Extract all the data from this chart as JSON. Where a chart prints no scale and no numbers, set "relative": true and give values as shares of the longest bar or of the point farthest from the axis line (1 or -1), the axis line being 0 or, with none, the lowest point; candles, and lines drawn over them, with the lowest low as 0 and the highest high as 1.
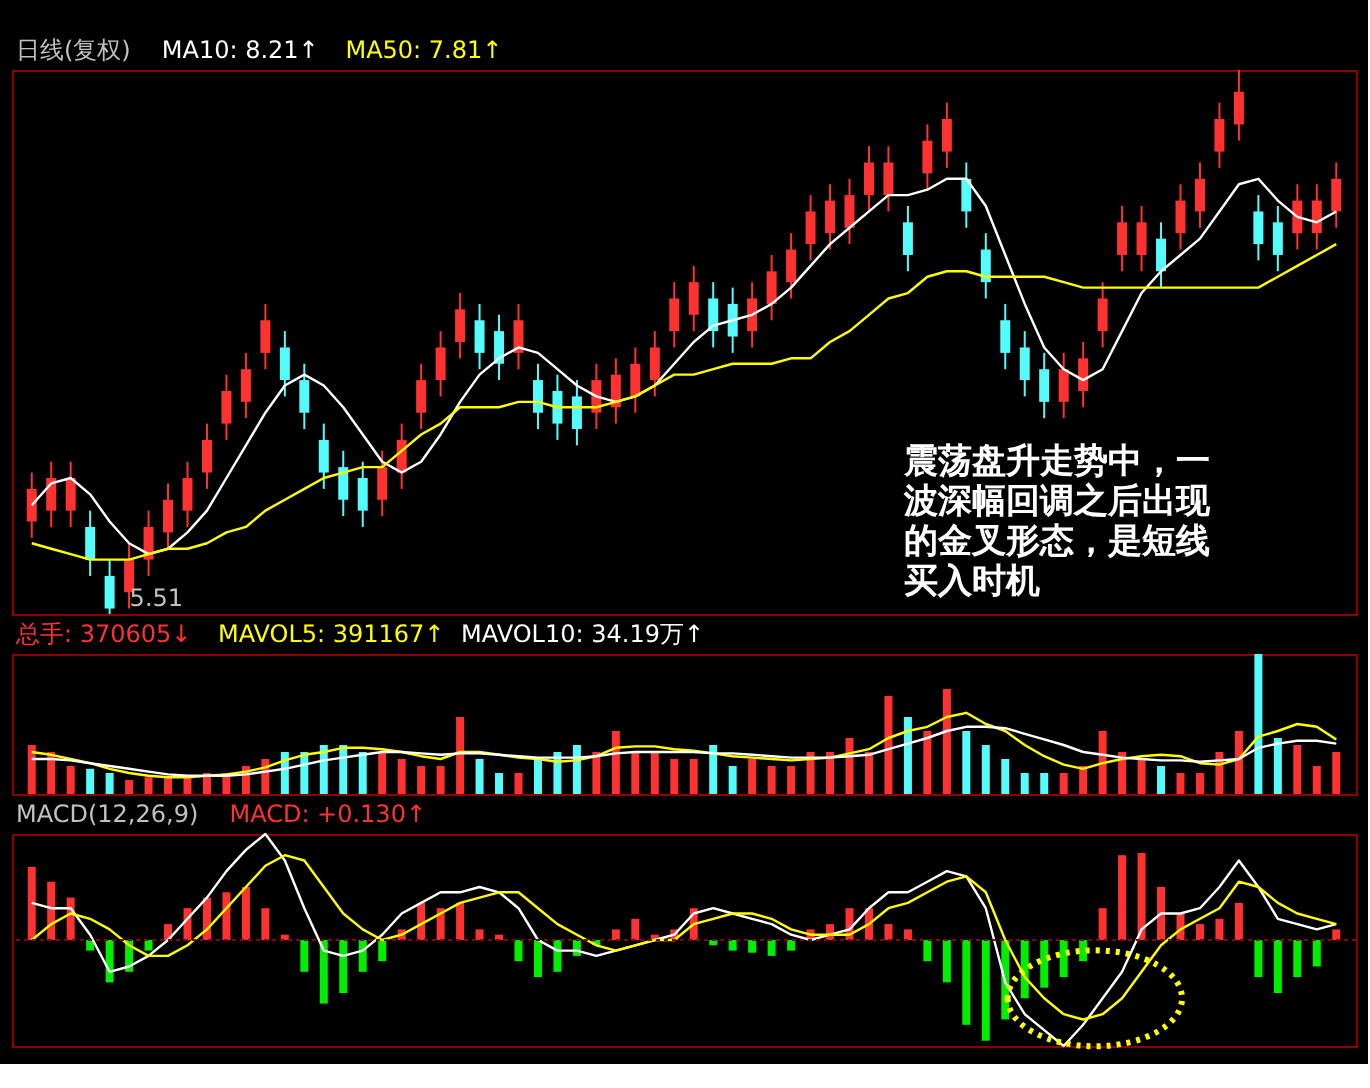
{
  "chart_data": [
    {
      "type": "candlestick",
      "relative": true,
      "tick_labels": false,
      "categories": [
        null,
        null,
        null,
        null,
        null,
        null,
        null,
        null,
        null,
        null,
        null,
        null,
        null,
        null,
        null,
        null,
        null,
        null,
        null,
        null,
        null,
        null,
        null,
        null,
        null,
        null,
        null,
        null,
        null,
        null,
        null,
        null,
        null,
        null,
        null,
        null,
        null,
        null,
        null,
        null,
        null,
        null,
        null,
        null,
        null,
        null,
        null,
        null,
        null,
        null,
        null,
        null,
        null,
        null,
        null,
        null,
        null,
        null,
        null,
        null,
        null,
        null,
        null,
        null,
        null,
        null,
        null,
        null
      ],
      "ohlc": [
        [
          0.17,
          0.26,
          0.14,
          0.23
        ],
        [
          0.19,
          0.28,
          0.16,
          0.25
        ],
        [
          0.19,
          0.28,
          0.16,
          0.25
        ],
        [
          0.16,
          0.19,
          0.07,
          0.1
        ],
        [
          0.07,
          0.1,
          0.0,
          0.01
        ],
        [
          0.04,
          0.13,
          0.01,
          0.1
        ],
        [
          0.1,
          0.19,
          0.07,
          0.16
        ],
        [
          0.15,
          0.24,
          0.12,
          0.21
        ],
        [
          0.19,
          0.28,
          0.16,
          0.25
        ],
        [
          0.26,
          0.35,
          0.23,
          0.32
        ],
        [
          0.35,
          0.44,
          0.32,
          0.41
        ],
        [
          0.39,
          0.48,
          0.36,
          0.45
        ],
        [
          0.48,
          0.57,
          0.45,
          0.54
        ],
        [
          0.49,
          0.52,
          0.4,
          0.43
        ],
        [
          0.43,
          0.46,
          0.34,
          0.37
        ],
        [
          0.32,
          0.35,
          0.23,
          0.26
        ],
        [
          0.27,
          0.3,
          0.18,
          0.21
        ],
        [
          0.25,
          0.28,
          0.16,
          0.19
        ],
        [
          0.21,
          0.3,
          0.18,
          0.27
        ],
        [
          0.26,
          0.35,
          0.23,
          0.32
        ],
        [
          0.37,
          0.46,
          0.34,
          0.43
        ],
        [
          0.43,
          0.52,
          0.4,
          0.49
        ],
        [
          0.5,
          0.59,
          0.47,
          0.56
        ],
        [
          0.54,
          0.57,
          0.45,
          0.48
        ],
        [
          0.52,
          0.55,
          0.43,
          0.46
        ],
        [
          0.48,
          0.57,
          0.45,
          0.54
        ],
        [
          0.43,
          0.46,
          0.34,
          0.37
        ],
        [
          0.41,
          0.44,
          0.32,
          0.35
        ],
        [
          0.4,
          0.43,
          0.31,
          0.34
        ],
        [
          0.37,
          0.46,
          0.34,
          0.43
        ],
        [
          0.38,
          0.47,
          0.35,
          0.44
        ],
        [
          0.4,
          0.49,
          0.37,
          0.46
        ],
        [
          0.43,
          0.52,
          0.4,
          0.49
        ],
        [
          0.52,
          0.61,
          0.49,
          0.58
        ],
        [
          0.55,
          0.64,
          0.52,
          0.61
        ],
        [
          0.58,
          0.61,
          0.49,
          0.52
        ],
        [
          0.57,
          0.6,
          0.48,
          0.51
        ],
        [
          0.52,
          0.61,
          0.49,
          0.58
        ],
        [
          0.57,
          0.66,
          0.54,
          0.63
        ],
        [
          0.61,
          0.7,
          0.58,
          0.67
        ],
        [
          0.68,
          0.77,
          0.65,
          0.74
        ],
        [
          0.7,
          0.79,
          0.67,
          0.76
        ],
        [
          0.71,
          0.8,
          0.68,
          0.77
        ],
        [
          0.77,
          0.86,
          0.74,
          0.83
        ],
        [
          0.77,
          0.86,
          0.74,
          0.83
        ],
        [
          0.72,
          0.75,
          0.63,
          0.66
        ],
        [
          0.81,
          0.9,
          0.78,
          0.87
        ],
        [
          0.85,
          0.94,
          0.82,
          0.91
        ],
        [
          0.8,
          0.83,
          0.71,
          0.74
        ],
        [
          0.67,
          0.7,
          0.58,
          0.61
        ],
        [
          0.54,
          0.57,
          0.45,
          0.48
        ],
        [
          0.49,
          0.52,
          0.4,
          0.43
        ],
        [
          0.45,
          0.48,
          0.36,
          0.39
        ],
        [
          0.39,
          0.48,
          0.36,
          0.45
        ],
        [
          0.41,
          0.5,
          0.38,
          0.47
        ],
        [
          0.52,
          0.61,
          0.49,
          0.58
        ],
        [
          0.66,
          0.75,
          0.63,
          0.72
        ],
        [
          0.66,
          0.75,
          0.63,
          0.72
        ],
        [
          0.69,
          0.72,
          0.6,
          0.63
        ],
        [
          0.7,
          0.79,
          0.67,
          0.76
        ],
        [
          0.74,
          0.83,
          0.71,
          0.8
        ],
        [
          0.85,
          0.94,
          0.82,
          0.91
        ],
        [
          0.9,
          1.0,
          0.87,
          0.96
        ],
        [
          0.74,
          0.77,
          0.65,
          0.68
        ],
        [
          0.72,
          0.75,
          0.63,
          0.66
        ],
        [
          0.7,
          0.79,
          0.67,
          0.76
        ],
        [
          0.7,
          0.79,
          0.67,
          0.76
        ],
        [
          0.74,
          0.83,
          0.71,
          0.8
        ]
      ],
      "colors": [
        "#ff3232",
        "#ff3232",
        "#ff3232",
        "#54fcfc",
        "#54fcfc",
        "#ff3232",
        "#ff3232",
        "#ff3232",
        "#ff3232",
        "#ff3232",
        "#ff3232",
        "#ff3232",
        "#ff3232",
        "#54fcfc",
        "#54fcfc",
        "#54fcfc",
        "#54fcfc",
        "#54fcfc",
        "#ff3232",
        "#ff3232",
        "#ff3232",
        "#ff3232",
        "#ff3232",
        "#54fcfc",
        "#54fcfc",
        "#ff3232",
        "#54fcfc",
        "#54fcfc",
        "#54fcfc",
        "#ff3232",
        "#ff3232",
        "#ff3232",
        "#ff3232",
        "#ff3232",
        "#ff3232",
        "#54fcfc",
        "#54fcfc",
        "#ff3232",
        "#ff3232",
        "#ff3232",
        "#ff3232",
        "#ff3232",
        "#ff3232",
        "#ff3232",
        "#ff3232",
        "#54fcfc",
        "#ff3232",
        "#ff3232",
        "#54fcfc",
        "#54fcfc",
        "#54fcfc",
        "#54fcfc",
        "#54fcfc",
        "#ff3232",
        "#ff3232",
        "#ff3232",
        "#ff3232",
        "#ff3232",
        "#54fcfc",
        "#ff3232",
        "#ff3232",
        "#ff3232",
        "#ff3232",
        "#54fcfc",
        "#54fcfc",
        "#ff3232",
        "#ff3232",
        "#ff3232"
      ],
      "series": [
        {
          "name": "MA10: 8.21↑",
          "type": "line",
          "color": "#ffffff",
          "values": [
            0.2,
            0.24,
            0.25,
            0.22,
            0.17,
            0.13,
            0.11,
            0.12,
            0.15,
            0.19,
            0.25,
            0.31,
            0.37,
            0.42,
            0.44,
            0.42,
            0.38,
            0.33,
            0.28,
            0.26,
            0.28,
            0.33,
            0.39,
            0.44,
            0.47,
            0.49,
            0.48,
            0.45,
            0.42,
            0.4,
            0.39,
            0.4,
            0.42,
            0.46,
            0.5,
            0.53,
            0.54,
            0.55,
            0.57,
            0.6,
            0.64,
            0.68,
            0.71,
            0.74,
            0.77,
            0.77,
            0.78,
            0.8,
            0.8,
            0.75,
            0.66,
            0.57,
            0.49,
            0.45,
            0.43,
            0.45,
            0.52,
            0.59,
            0.63,
            0.66,
            0.69,
            0.74,
            0.79,
            0.8,
            0.76,
            0.73,
            0.72,
            0.74
          ]
        },
        {
          "name": "MA50: 7.81↑",
          "type": "line",
          "color": "#ffff00",
          "values": [
            0.13,
            0.12,
            0.11,
            0.1,
            0.1,
            0.1,
            0.11,
            0.12,
            0.12,
            0.13,
            0.15,
            0.16,
            0.19,
            0.21,
            0.23,
            0.25,
            0.26,
            0.27,
            0.27,
            0.3,
            0.33,
            0.35,
            0.38,
            0.38,
            0.38,
            0.39,
            0.39,
            0.38,
            0.38,
            0.38,
            0.39,
            0.4,
            0.42,
            0.44,
            0.44,
            0.45,
            0.46,
            0.46,
            0.46,
            0.47,
            0.47,
            0.5,
            0.52,
            0.55,
            0.58,
            0.59,
            0.62,
            0.63,
            0.63,
            0.62,
            0.62,
            0.62,
            0.62,
            0.61,
            0.6,
            0.6,
            0.6,
            0.6,
            0.6,
            0.6,
            0.6,
            0.6,
            0.6,
            0.6,
            0.62,
            0.64,
            0.66,
            0.68
          ]
        }
      ],
      "annotations": [
        "日线(复权)",
        "5.51",
        "震荡盘升走势中，一波深幅回调之后出现的金叉形态，是短线买入时机"
      ]
    },
    {
      "type": "bar",
      "relative": true,
      "tick_labels": false,
      "categories": [
        null,
        null,
        null,
        null,
        null,
        null,
        null,
        null,
        null,
        null,
        null,
        null,
        null,
        null,
        null,
        null,
        null,
        null,
        null,
        null,
        null,
        null,
        null,
        null,
        null,
        null,
        null,
        null,
        null,
        null,
        null,
        null,
        null,
        null,
        null,
        null,
        null,
        null,
        null,
        null,
        null,
        null,
        null,
        null,
        null,
        null,
        null,
        null,
        null,
        null,
        null,
        null,
        null,
        null,
        null,
        null,
        null,
        null,
        null,
        null,
        null,
        null,
        null,
        null,
        null,
        null,
        null,
        null
      ],
      "series": [
        {
          "name": "总手: 370605↓",
          "type": "bar",
          "color": "#ff3232",
          "colors": [
            "#ff3232",
            "#ff3232",
            "#ff3232",
            "#54fcfc",
            "#54fcfc",
            "#ff3232",
            "#ff3232",
            "#ff3232",
            "#ff3232",
            "#ff3232",
            "#ff3232",
            "#ff3232",
            "#ff3232",
            "#54fcfc",
            "#54fcfc",
            "#54fcfc",
            "#54fcfc",
            "#54fcfc",
            "#ff3232",
            "#ff3232",
            "#ff3232",
            "#ff3232",
            "#ff3232",
            "#54fcfc",
            "#54fcfc",
            "#ff3232",
            "#54fcfc",
            "#54fcfc",
            "#54fcfc",
            "#ff3232",
            "#ff3232",
            "#ff3232",
            "#ff3232",
            "#ff3232",
            "#ff3232",
            "#54fcfc",
            "#54fcfc",
            "#ff3232",
            "#ff3232",
            "#ff3232",
            "#ff3232",
            "#ff3232",
            "#ff3232",
            "#ff3232",
            "#ff3232",
            "#54fcfc",
            "#ff3232",
            "#ff3232",
            "#54fcfc",
            "#54fcfc",
            "#54fcfc",
            "#54fcfc",
            "#54fcfc",
            "#ff3232",
            "#ff3232",
            "#ff3232",
            "#ff3232",
            "#ff3232",
            "#54fcfc",
            "#ff3232",
            "#ff3232",
            "#ff3232",
            "#ff3232",
            "#54fcfc",
            "#54fcfc",
            "#ff3232",
            "#ff3232",
            "#ff3232"
          ],
          "values": [
            0.35,
            0.3,
            0.2,
            0.18,
            0.15,
            0.1,
            0.12,
            0.12,
            0.12,
            0.15,
            0.15,
            0.2,
            0.25,
            0.3,
            0.3,
            0.35,
            0.35,
            0.3,
            0.3,
            0.25,
            0.2,
            0.2,
            0.55,
            0.25,
            0.15,
            0.15,
            0.25,
            0.3,
            0.35,
            0.3,
            0.45,
            0.3,
            0.3,
            0.25,
            0.25,
            0.35,
            0.2,
            0.25,
            0.2,
            0.2,
            0.3,
            0.3,
            0.4,
            0.3,
            0.7,
            0.55,
            0.45,
            0.75,
            0.45,
            0.35,
            0.25,
            0.15,
            0.15,
            0.15,
            0.2,
            0.45,
            0.3,
            0.25,
            0.2,
            0.15,
            0.15,
            0.3,
            0.45,
            1.0,
            0.4,
            0.35,
            0.2,
            0.3
          ]
        },
        {
          "name": "MAVOL5: 391167↑",
          "type": "line",
          "color": "#ffff00",
          "values": [
            0.3,
            0.28,
            0.25,
            0.22,
            0.18,
            0.15,
            0.13,
            0.12,
            0.12,
            0.13,
            0.14,
            0.16,
            0.19,
            0.24,
            0.28,
            0.3,
            0.33,
            0.33,
            0.32,
            0.3,
            0.27,
            0.25,
            0.3,
            0.3,
            0.28,
            0.26,
            0.25,
            0.23,
            0.24,
            0.27,
            0.33,
            0.34,
            0.34,
            0.32,
            0.31,
            0.29,
            0.27,
            0.26,
            0.25,
            0.24,
            0.25,
            0.26,
            0.29,
            0.32,
            0.4,
            0.45,
            0.48,
            0.55,
            0.58,
            0.5,
            0.45,
            0.35,
            0.27,
            0.21,
            0.18,
            0.22,
            0.25,
            0.27,
            0.28,
            0.27,
            0.22,
            0.21,
            0.25,
            0.41,
            0.45,
            0.5,
            0.48,
            0.39
          ]
        },
        {
          "name": "MAVOL10: 34.19万↑",
          "type": "line",
          "color": "#ffffff",
          "values": [
            0.25,
            0.25,
            0.24,
            0.22,
            0.2,
            0.18,
            0.16,
            0.14,
            0.13,
            0.13,
            0.13,
            0.14,
            0.16,
            0.18,
            0.21,
            0.24,
            0.26,
            0.28,
            0.3,
            0.3,
            0.29,
            0.28,
            0.29,
            0.29,
            0.28,
            0.27,
            0.26,
            0.26,
            0.26,
            0.27,
            0.29,
            0.3,
            0.3,
            0.3,
            0.3,
            0.29,
            0.29,
            0.28,
            0.27,
            0.26,
            0.26,
            0.26,
            0.27,
            0.28,
            0.32,
            0.36,
            0.4,
            0.45,
            0.48,
            0.48,
            0.47,
            0.43,
            0.39,
            0.35,
            0.3,
            0.28,
            0.26,
            0.25,
            0.24,
            0.24,
            0.23,
            0.24,
            0.25,
            0.33,
            0.36,
            0.38,
            0.38,
            0.36
          ]
        }
      ]
    },
    {
      "type": "bar",
      "relative": true,
      "tick_labels": false,
      "categories": [
        null,
        null,
        null,
        null,
        null,
        null,
        null,
        null,
        null,
        null,
        null,
        null,
        null,
        null,
        null,
        null,
        null,
        null,
        null,
        null,
        null,
        null,
        null,
        null,
        null,
        null,
        null,
        null,
        null,
        null,
        null,
        null,
        null,
        null,
        null,
        null,
        null,
        null,
        null,
        null,
        null,
        null,
        null,
        null,
        null,
        null,
        null,
        null,
        null,
        null,
        null,
        null,
        null,
        null,
        null,
        null,
        null,
        null,
        null,
        null,
        null,
        null,
        null,
        null,
        null,
        null,
        null,
        null
      ],
      "series": [
        {
          "name": "MACD: +0.130↑",
          "type": "bar",
          "color": "#ff3232",
          "colors": [
            "#ff3232",
            "#ff3232",
            "#ff3232",
            "#00ee00",
            "#00ee00",
            "#00ee00",
            "#00ee00",
            "#ff3232",
            "#ff3232",
            "#ff3232",
            "#ff3232",
            "#ff3232",
            "#ff3232",
            "#ff3232",
            "#00ee00",
            "#00ee00",
            "#00ee00",
            "#00ee00",
            "#00ee00",
            "#ff3232",
            "#ff3232",
            "#ff3232",
            "#ff3232",
            "#ff3232",
            "#ff3232",
            "#00ee00",
            "#00ee00",
            "#00ee00",
            "#00ee00",
            "#00ee00",
            "#ff3232",
            "#ff3232",
            "#ff3232",
            "#ff3232",
            "#ff3232",
            "#00ee00",
            "#00ee00",
            "#00ee00",
            "#00ee00",
            "#00ee00",
            "#ff3232",
            "#ff3232",
            "#ff3232",
            "#ff3232",
            "#ff3232",
            "#ff3232",
            "#00ee00",
            "#00ee00",
            "#00ee00",
            "#00ee00",
            "#00ee00",
            "#00ee00",
            "#00ee00",
            "#00ee00",
            "#00ee00",
            "#ff3232",
            "#ff3232",
            "#ff3232",
            "#ff3232",
            "#ff3232",
            "#ff3232",
            "#ff3232",
            "#ff3232",
            "#00ee00",
            "#00ee00",
            "#00ee00",
            "#00ee00",
            "#ff3232"
          ],
          "values": [
            0.69,
            0.55,
            0.4,
            -0.1,
            -0.4,
            -0.3,
            -0.1,
            0.15,
            0.3,
            0.4,
            0.45,
            0.5,
            0.3,
            0.05,
            -0.3,
            -0.6,
            -0.5,
            -0.3,
            -0.2,
            0.1,
            0.35,
            0.3,
            0.35,
            0.1,
            0.05,
            -0.2,
            -0.35,
            -0.3,
            -0.15,
            -0.05,
            0.1,
            0.2,
            0.05,
            0.1,
            0.3,
            -0.05,
            -0.1,
            -0.12,
            -0.15,
            -0.1,
            0.1,
            0.15,
            0.3,
            0.3,
            0.15,
            0.1,
            -0.2,
            -0.4,
            -0.8,
            -0.95,
            -0.75,
            -0.55,
            -0.45,
            -0.35,
            -0.2,
            0.3,
            0.8,
            0.82,
            0.5,
            0.25,
            0.15,
            0.2,
            0.35,
            -0.35,
            -0.5,
            -0.35,
            -0.25,
            0.1
          ]
        },
        {
          "type": "line",
          "color": "#ffffff",
          "values": [
            0.35,
            0.3,
            0.3,
            0.05,
            -0.3,
            -0.25,
            -0.15,
            0.0,
            0.2,
            0.4,
            0.65,
            0.85,
            1.0,
            0.75,
            0.3,
            -0.1,
            -0.15,
            -0.1,
            0.05,
            0.25,
            0.35,
            0.45,
            0.45,
            0.5,
            0.45,
            0.3,
            0.0,
            -0.1,
            -0.1,
            -0.15,
            -0.1,
            -0.05,
            0.0,
            0.05,
            0.25,
            0.3,
            0.25,
            0.2,
            0.15,
            0.05,
            0.0,
            0.05,
            0.1,
            0.3,
            0.45,
            0.45,
            0.55,
            0.65,
            0.6,
            0.3,
            -0.4,
            -0.7,
            -0.85,
            -1.0,
            -0.8,
            -0.55,
            -0.3,
            0.1,
            0.25,
            0.25,
            0.3,
            0.5,
            0.75,
            0.5,
            0.2,
            0.15,
            0.1,
            0.15
          ]
        },
        {
          "type": "line",
          "color": "#ffff00",
          "values": [
            0.0,
            0.15,
            0.25,
            0.2,
            0.1,
            -0.05,
            -0.15,
            -0.15,
            -0.05,
            0.1,
            0.3,
            0.5,
            0.7,
            0.8,
            0.75,
            0.5,
            0.25,
            0.1,
            0.0,
            0.05,
            0.15,
            0.25,
            0.35,
            0.4,
            0.45,
            0.45,
            0.3,
            0.15,
            0.05,
            -0.05,
            -0.1,
            -0.05,
            0.0,
            0.0,
            0.15,
            0.2,
            0.25,
            0.25,
            0.2,
            0.1,
            0.05,
            0.05,
            0.05,
            0.15,
            0.3,
            0.35,
            0.45,
            0.55,
            0.6,
            0.45,
            0.0,
            -0.35,
            -0.55,
            -0.7,
            -0.75,
            -0.7,
            -0.55,
            -0.3,
            -0.05,
            0.1,
            0.2,
            0.3,
            0.55,
            0.5,
            0.35,
            0.25,
            0.2,
            0.15
          ]
        }
      ],
      "ref_lines": [
        {
          "axis": "y",
          "value": 0,
          "color": "#8b0000",
          "line_style": "dotted"
        }
      ],
      "annotations": [
        "MACD(12,26,9)"
      ]
    }
  ]
}
